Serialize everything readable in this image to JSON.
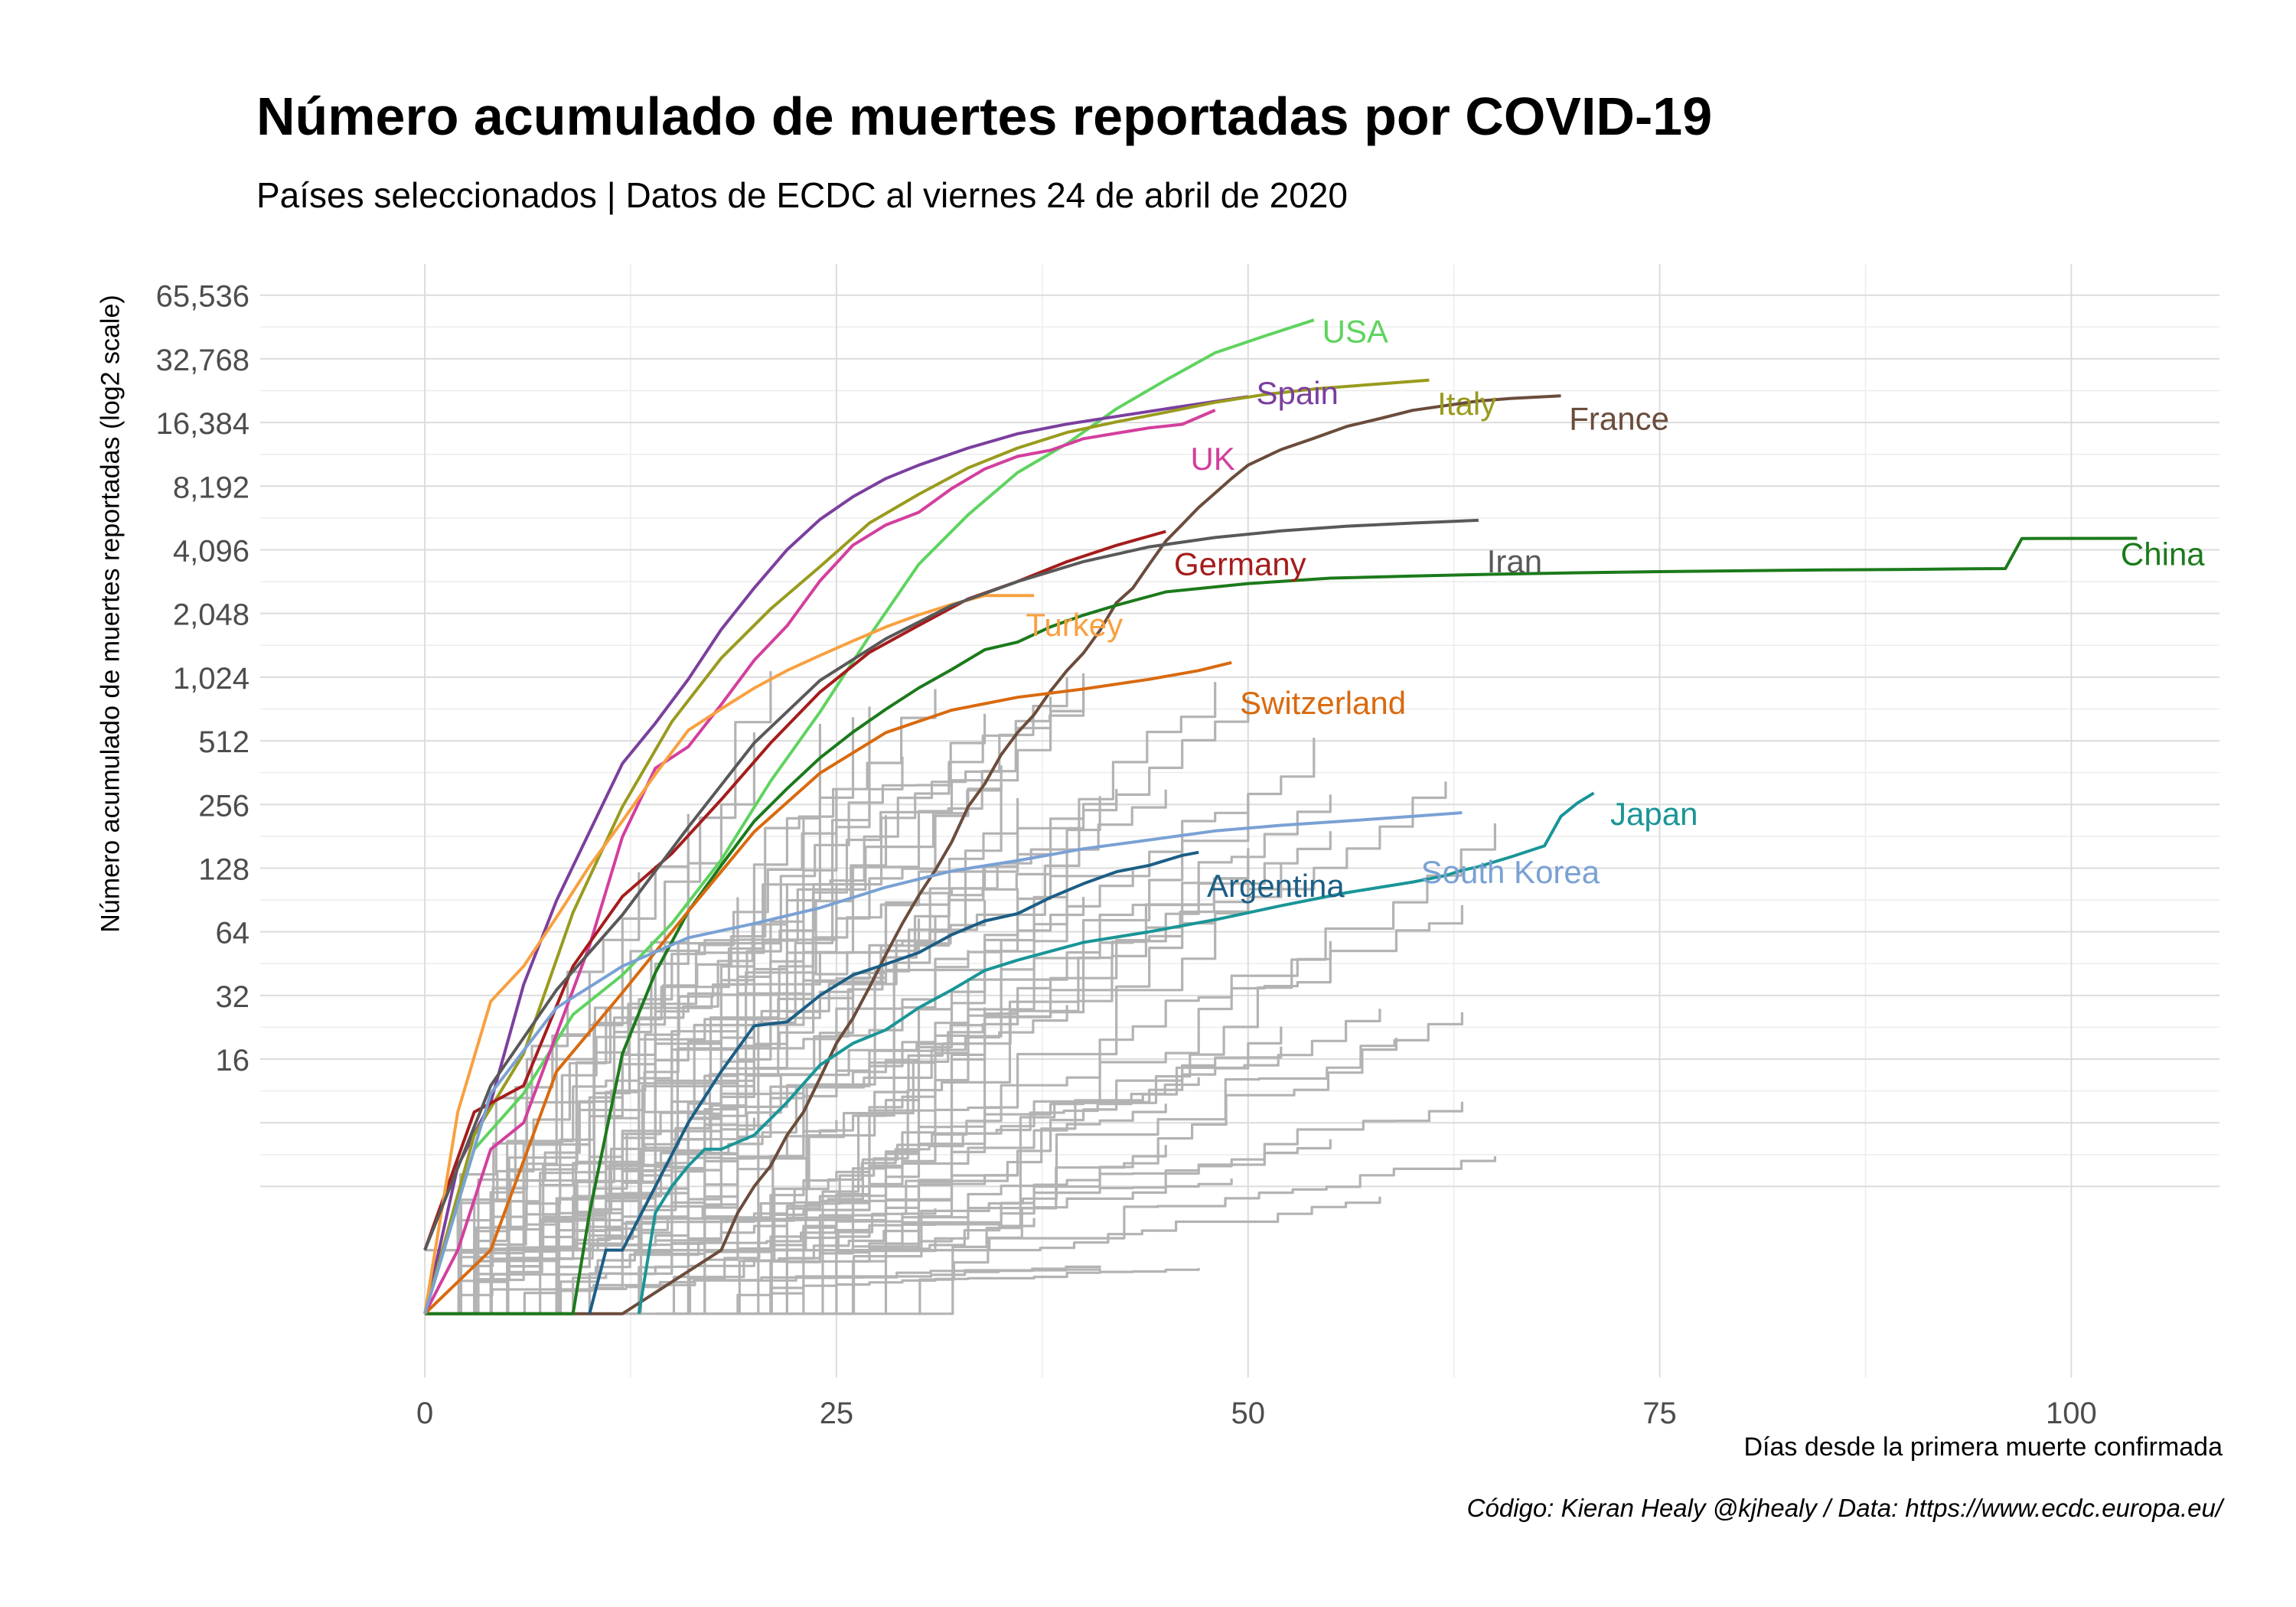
{
  "chart_data": {
    "type": "line",
    "title": "Número acumulado de muertes reportadas por COVID-19",
    "subtitle": "Países seleccionados | Datos de ECDC al viernes 24 de abril de 2020",
    "xlabel": "Días desde la primera muerte confirmada",
    "ylabel": "Número acumulado de muertes reportadas (log2 scale)",
    "caption": "Código: Kieran Healy @kjhealy / Data: https://www.ecdc.europa.eu/",
    "y_scale": "log2",
    "xlim": [
      -10,
      109
    ],
    "ylim": [
      0.5,
      92000
    ],
    "x_ticks": [
      0,
      25,
      50,
      75,
      100
    ],
    "x_tick_labels": [
      "0",
      "25",
      "50",
      "75",
      "100"
    ],
    "y_ticks": [
      16,
      32,
      64,
      128,
      256,
      512,
      1024,
      2048,
      4096,
      8192,
      16384,
      32768,
      65536
    ],
    "y_tick_labels": [
      "16",
      "32",
      "64",
      "128",
      "256",
      "512",
      "1,024",
      "2,048",
      "4,096",
      "8,192",
      "16,384",
      "32,768",
      "65,536"
    ],
    "grid": true,
    "legend": "none",
    "background_series_color": "#b3b3b3",
    "series": [
      {
        "name": "USA",
        "color": "#5fd35f",
        "x": [
          0,
          3,
          6,
          9,
          12,
          15,
          18,
          21,
          24,
          27,
          30,
          33,
          36,
          39,
          42,
          45,
          48,
          51,
          54
        ],
        "y": [
          1,
          6,
          11,
          26,
          40,
          70,
          140,
          330,
          700,
          1600,
          3500,
          6000,
          9500,
          13000,
          19000,
          26000,
          35000,
          42000,
          50000
        ]
      },
      {
        "name": "Spain",
        "color": "#7b3f9e",
        "x": [
          0,
          2,
          4,
          6,
          8,
          10,
          12,
          14,
          16,
          18,
          20,
          22,
          24,
          26,
          28,
          30,
          33,
          36,
          39,
          42,
          45,
          48,
          50
        ],
        "y": [
          1,
          5,
          10,
          36,
          90,
          190,
          400,
          620,
          1000,
          1720,
          2700,
          4100,
          5700,
          7300,
          8900,
          10300,
          12400,
          14500,
          16100,
          17500,
          19000,
          20600,
          21700
        ]
      },
      {
        "name": "Italy",
        "color": "#999b1e",
        "x": [
          0,
          3,
          6,
          9,
          12,
          15,
          18,
          21,
          24,
          27,
          30,
          33,
          36,
          39,
          42,
          45,
          48,
          51,
          54,
          57,
          61
        ],
        "y": [
          1,
          7,
          17,
          79,
          250,
          630,
          1260,
          2150,
          3410,
          5480,
          7500,
          10000,
          12400,
          14700,
          16500,
          18300,
          20400,
          22200,
          23600,
          24600,
          25970
        ]
      },
      {
        "name": "France",
        "color": "#6b4c3b",
        "x": [
          0,
          6,
          12,
          18,
          19,
          20,
          21,
          22,
          23,
          24,
          25,
          26,
          27,
          28,
          29,
          30,
          31,
          32,
          33,
          34,
          35,
          36,
          37,
          38,
          39,
          40,
          41,
          42,
          43,
          44,
          45,
          46,
          47,
          48,
          49,
          50,
          52,
          54,
          56,
          58,
          60,
          62,
          64,
          66,
          69
        ],
        "y": [
          1,
          1,
          1,
          2,
          3,
          4,
          5,
          7,
          9,
          13,
          19,
          25,
          35,
          50,
          70,
          95,
          125,
          170,
          250,
          320,
          440,
          560,
          680,
          880,
          1100,
          1330,
          1700,
          2300,
          2700,
          3500,
          4500,
          5400,
          6500,
          7600,
          8900,
          10300,
          12200,
          13800,
          15700,
          17100,
          18700,
          19700,
          20700,
          21300,
          21900
        ]
      },
      {
        "name": "UK",
        "color": "#d33f9e",
        "x": [
          0,
          2,
          4,
          6,
          8,
          10,
          12,
          14,
          16,
          18,
          20,
          22,
          24,
          26,
          28,
          30,
          32,
          34,
          36,
          38,
          40,
          42,
          44,
          46,
          48
        ],
        "y": [
          1,
          2,
          6,
          8,
          21,
          55,
          180,
          380,
          480,
          760,
          1230,
          1790,
          2920,
          4310,
          5370,
          6160,
          7980,
          9870,
          11330,
          12110,
          13730,
          14580,
          15460,
          16060,
          18740
        ]
      },
      {
        "name": "Germany",
        "color": "#a51c1c",
        "x": [
          0,
          3,
          6,
          9,
          12,
          15,
          18,
          21,
          24,
          27,
          30,
          33,
          36,
          39,
          42,
          45
        ],
        "y": [
          2,
          9,
          12,
          44,
          94,
          150,
          270,
          500,
          870,
          1340,
          1800,
          2400,
          2900,
          3600,
          4300,
          5000
        ]
      },
      {
        "name": "Turkey",
        "color": "#f8a040",
        "x": [
          0,
          2,
          4,
          6,
          8,
          10,
          12,
          14,
          16,
          18,
          20,
          22,
          24,
          26,
          28,
          30,
          32,
          34,
          37
        ],
        "y": [
          1,
          9,
          30,
          44,
          75,
          131,
          214,
          356,
          574,
          725,
          908,
          1101,
          1296,
          1518,
          1769,
          2017,
          2259,
          2491,
          2491
        ]
      },
      {
        "name": "Iran",
        "color": "#595959",
        "x": [
          0,
          4,
          8,
          12,
          16,
          20,
          24,
          28,
          32,
          36,
          40,
          44,
          48,
          52,
          56,
          60,
          64
        ],
        "y": [
          2,
          12,
          34,
          77,
          200,
          500,
          988,
          1556,
          2234,
          2898,
          3603,
          4232,
          4683,
          5031,
          5297,
          5481,
          5650
        ]
      },
      {
        "name": "China",
        "color": "#1b7a1b",
        "x": [
          0,
          5,
          9,
          10,
          12,
          14,
          16,
          18,
          20,
          22,
          24,
          26,
          28,
          30,
          32,
          34,
          36,
          38,
          40,
          42,
          45,
          50,
          55,
          60,
          65,
          70,
          75,
          80,
          85,
          90,
          94,
          96,
          97,
          104
        ],
        "y": [
          1,
          1,
          1,
          3,
          17,
          41,
          80,
          132,
          213,
          304,
          425,
          563,
          722,
          910,
          1113,
          1380,
          1500,
          1770,
          2010,
          2240,
          2590,
          2835,
          3010,
          3080,
          3140,
          3190,
          3230,
          3260,
          3290,
          3310,
          3330,
          3340,
          4632,
          4642
        ]
      },
      {
        "name": "Switzerland",
        "color": "#d96a0f",
        "x": [
          0,
          4,
          8,
          12,
          16,
          20,
          24,
          28,
          32,
          36,
          40,
          44,
          47,
          49
        ],
        "y": [
          1,
          2,
          14,
          33,
          80,
          190,
          360,
          560,
          715,
          822,
          900,
          1000,
          1100,
          1200
        ]
      },
      {
        "name": "Japan",
        "color": "#1a9597",
        "x": [
          13,
          14,
          15,
          16,
          17,
          18,
          20,
          22,
          24,
          26,
          28,
          30,
          32,
          34,
          36,
          40,
          44,
          48,
          52,
          56,
          60,
          62,
          63,
          64,
          66,
          68,
          69,
          70,
          71
        ],
        "y": [
          1,
          3,
          4,
          5,
          6,
          6,
          7,
          10,
          15,
          19,
          22,
          28,
          34,
          42,
          47,
          57,
          64,
          73,
          85,
          98,
          110,
          118,
          125,
          130,
          145,
          163,
          225,
          260,
          290
        ]
      },
      {
        "name": "South Korea",
        "color": "#7aa1d4",
        "x": [
          0,
          4,
          8,
          12,
          16,
          20,
          24,
          28,
          32,
          36,
          40,
          44,
          48,
          52,
          56,
          60,
          63
        ],
        "y": [
          1,
          11,
          28,
          44,
          60,
          70,
          83,
          104,
          124,
          139,
          158,
          174,
          192,
          204,
          214,
          225,
          234
        ]
      },
      {
        "name": "Argentina",
        "color": "#1b5e85",
        "x": [
          10,
          11,
          12,
          14,
          16,
          18,
          20,
          22,
          24,
          26,
          28,
          30,
          32,
          34,
          36,
          38,
          40,
          42,
          44,
          46,
          47
        ],
        "y": [
          1,
          2,
          2,
          4,
          8,
          14,
          23,
          24,
          32,
          40,
          45,
          51,
          62,
          72,
          78,
          93,
          108,
          123,
          132,
          147,
          152
        ]
      }
    ],
    "annotations": [
      {
        "text": "USA",
        "x": 54.5,
        "y": 44000,
        "color": "#5fd35f"
      },
      {
        "text": "Spain",
        "x": 50.5,
        "y": 22500,
        "color": "#7b3f9e"
      },
      {
        "text": "Italy",
        "x": 61.5,
        "y": 20000,
        "color": "#999b1e"
      },
      {
        "text": "France",
        "x": 69.5,
        "y": 17000,
        "color": "#6b4c3b"
      },
      {
        "text": "UK",
        "x": 46.5,
        "y": 11000,
        "color": "#d33f9e"
      },
      {
        "text": "Germany",
        "x": 45.5,
        "y": 3500,
        "color": "#a51c1c"
      },
      {
        "text": "Iran",
        "x": 64.5,
        "y": 3600,
        "color": "#595959"
      },
      {
        "text": "China",
        "x": 103,
        "y": 3900,
        "color": "#1b7a1b"
      },
      {
        "text": "Turkey",
        "x": 36.5,
        "y": 1800,
        "color": "#f8a040"
      },
      {
        "text": "Switzerland",
        "x": 49.5,
        "y": 770,
        "color": "#d96a0f"
      },
      {
        "text": "Japan",
        "x": 72,
        "y": 230,
        "color": "#1a9597"
      },
      {
        "text": "South Korea",
        "x": 60.5,
        "y": 122,
        "color": "#7aa1d4"
      },
      {
        "text": "Argentina",
        "x": 47.5,
        "y": 105,
        "color": "#1b5e85"
      }
    ]
  }
}
